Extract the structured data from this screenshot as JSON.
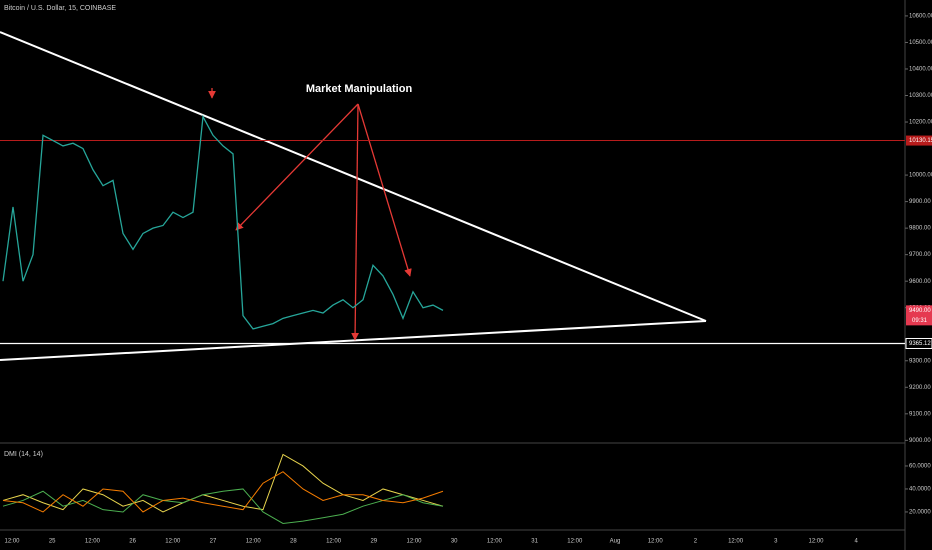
{
  "chart_data": {
    "type": "line",
    "title": "Bitcoin / U.S. Dollar, 15, COINBASE",
    "annotation": "Market Manipulation",
    "ylim": [
      8990,
      10660
    ],
    "yticks": [
      {
        "value": 10600,
        "label": "10600.00"
      },
      {
        "value": 10500,
        "label": "10500.00"
      },
      {
        "value": 10400,
        "label": "10400.00"
      },
      {
        "value": 10300,
        "label": "10300.00"
      },
      {
        "value": 10200,
        "label": "10200.00"
      },
      {
        "value": 10000,
        "label": "10000.00"
      },
      {
        "value": 9900,
        "label": "9900.00"
      },
      {
        "value": 9800,
        "label": "9800.00"
      },
      {
        "value": 9700,
        "label": "9700.00"
      },
      {
        "value": 9600,
        "label": "9600.00"
      },
      {
        "value": 9500,
        "label": "9500.00"
      },
      {
        "value": 9300,
        "label": "9300.00"
      },
      {
        "value": 9200,
        "label": "9200.00"
      },
      {
        "value": 9100,
        "label": "9100.00"
      },
      {
        "value": 9000,
        "label": "9000.00"
      }
    ],
    "resistance": 10130.15,
    "support": 9365.12,
    "last_price": {
      "value": 9490.0,
      "label": "9490.00"
    },
    "countdown": "09:31",
    "x_labels": [
      "12:00",
      "25",
      "12:00",
      "26",
      "12:00",
      "27",
      "12:00",
      "28",
      "12:00",
      "29",
      "12:00",
      "30",
      "12:00",
      "31",
      "12:00",
      "Aug",
      "12:00",
      "2",
      "12:00",
      "3",
      "12:00",
      "4"
    ],
    "color": "#26a69a",
    "values": [
      9600,
      9880,
      9600,
      9700,
      10150,
      10130,
      10110,
      10120,
      10100,
      10020,
      9960,
      9980,
      9780,
      9720,
      9780,
      9800,
      9810,
      9860,
      9840,
      9860,
      10220,
      10150,
      10110,
      10080,
      9470,
      9420,
      9430,
      9440,
      9460,
      9470,
      9480,
      9490,
      9480,
      9510,
      9530,
      9500,
      9530,
      9660,
      9620,
      9550,
      9460,
      9560,
      9500,
      9510,
      9490
    ],
    "indicator": {
      "label": "DMI (14, 14)",
      "ylim": [
        4.3,
        76.5
      ],
      "yticks": [
        {
          "value": 60,
          "label": "60.0000"
        },
        {
          "value": 40,
          "label": "40.0000"
        },
        {
          "value": 20,
          "label": "20.0000"
        }
      ],
      "series": [
        {
          "color": "#e8d44d",
          "values": [
            30,
            35,
            28,
            22,
            40,
            35,
            25,
            30,
            20,
            28,
            35,
            30,
            25,
            22,
            70,
            60,
            45,
            35,
            30,
            40,
            35,
            30,
            25
          ]
        },
        {
          "color": "#4caf50",
          "values": [
            25,
            30,
            38,
            25,
            30,
            22,
            20,
            35,
            30,
            28,
            35,
            38,
            40,
            20,
            10,
            12,
            15,
            18,
            25,
            30,
            35,
            28,
            25
          ]
        },
        {
          "color": "#f57c00",
          "values": [
            30,
            28,
            20,
            35,
            25,
            40,
            38,
            20,
            30,
            32,
            28,
            25,
            22,
            45,
            55,
            40,
            30,
            35,
            35,
            30,
            28,
            32,
            38
          ]
        }
      ]
    }
  }
}
